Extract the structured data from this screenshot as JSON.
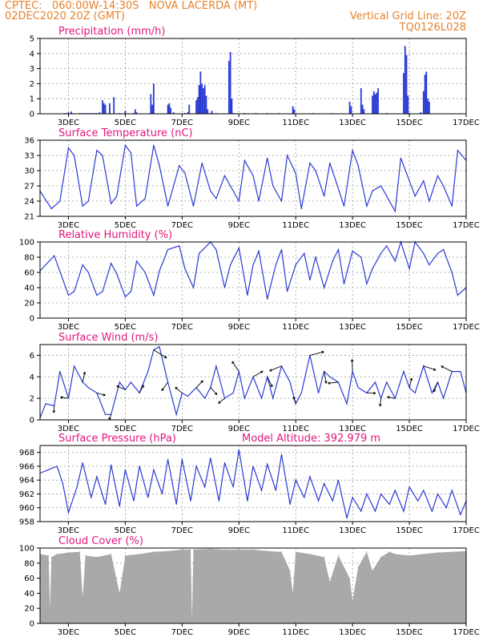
{
  "header": {
    "line1": "CPTEC:   060:00W-14:30S   NOVA LACERDA (MT)",
    "line2": "02DEC2020 20Z (GMT)",
    "grid_note": "Vertical Grid Line: 20Z",
    "code": "TQ0126L028",
    "model_altitude": "Model Altitude: 392.979 m"
  },
  "colors": {
    "header": "#e8822a",
    "title": "#e0177e",
    "line": "#2a3bd4",
    "bar": "#2a3bd4",
    "cloud": "#a9a9a9",
    "grid": "#9a9a9a"
  },
  "x_ticks": [
    "3DEC",
    "5DEC",
    "7DEC",
    "9DEC",
    "11DEC",
    "13DEC",
    "15DEC",
    "17DEC"
  ],
  "chart_data": [
    {
      "id": "precip",
      "type": "bar",
      "title": "Precipitation (mm/h)",
      "ylim": [
        0,
        5
      ],
      "yticks": [
        0,
        1,
        2,
        3,
        4,
        5
      ],
      "x": [
        2.9,
        3.0,
        3.1,
        3.4,
        3.5,
        3.6,
        3.7,
        3.8,
        3.9,
        4.0,
        4.1,
        4.2,
        4.25,
        4.3,
        4.45,
        4.6,
        4.8,
        5.0,
        5.3,
        5.35,
        5.4,
        5.9,
        5.95,
        6.0,
        6.5,
        6.55,
        6.6,
        6.7,
        7.1,
        7.2,
        7.25,
        7.5,
        7.55,
        7.6,
        7.65,
        7.7,
        7.75,
        7.8,
        7.85,
        7.9,
        8.0,
        8.05,
        8.2,
        8.65,
        8.7,
        8.75,
        8.8,
        9.2,
        9.6,
        10.0,
        10.4,
        10.9,
        10.95,
        11.6,
        12.3,
        12.9,
        12.95,
        13.3,
        13.35,
        13.4,
        13.7,
        13.75,
        13.8,
        13.85,
        13.9,
        14.2,
        14.8,
        14.85,
        14.9,
        14.95,
        15.0,
        15.4,
        15.5,
        15.55,
        15.6,
        15.65,
        15.7
      ],
      "values": [
        0.05,
        0.1,
        0.15,
        0.05,
        0.05,
        0.05,
        0.05,
        0.05,
        0.05,
        0.05,
        0.1,
        0.9,
        0.7,
        0.6,
        0.7,
        1.1,
        0.05,
        0.2,
        0.05,
        0.3,
        0.1,
        1.3,
        0.6,
        2.0,
        0.6,
        0.7,
        0.4,
        0.1,
        0.05,
        0.1,
        0.6,
        0.9,
        1.1,
        1.9,
        2.8,
        2.0,
        1.7,
        1.9,
        1.2,
        0.3,
        0.05,
        0.2,
        0.05,
        3.5,
        4.1,
        1.0,
        0.05,
        0.05,
        0.05,
        0.05,
        0.05,
        0.5,
        0.3,
        0.05,
        0.05,
        0.8,
        0.5,
        1.7,
        0.6,
        0.3,
        1.2,
        1.5,
        1.3,
        1.4,
        1.7,
        0.05,
        2.7,
        4.5,
        3.9,
        1.2,
        0.05,
        0.1,
        1.5,
        2.6,
        2.8,
        1.0,
        0.8
      ]
    },
    {
      "id": "temp",
      "type": "line",
      "title": "Surface Temperature (nC)",
      "ylim": [
        21,
        36
      ],
      "yticks": [
        21,
        24,
        27,
        30,
        33,
        36
      ],
      "x": [
        2.0,
        2.4,
        2.7,
        3.0,
        3.2,
        3.5,
        3.7,
        4.0,
        4.2,
        4.5,
        4.7,
        5.0,
        5.2,
        5.4,
        5.7,
        6.0,
        6.2,
        6.5,
        6.9,
        7.1,
        7.4,
        7.7,
        8.0,
        8.2,
        8.5,
        8.7,
        9.0,
        9.2,
        9.5,
        9.7,
        10.0,
        10.2,
        10.5,
        10.7,
        11.0,
        11.2,
        11.5,
        11.7,
        12.0,
        12.2,
        12.5,
        12.7,
        13.0,
        13.2,
        13.5,
        13.7,
        14.0,
        14.2,
        14.5,
        14.7,
        15.0,
        15.2,
        15.5,
        15.7,
        16.0,
        16.2,
        16.5,
        16.7,
        17.0
      ],
      "values": [
        26,
        22.5,
        24,
        34.5,
        33,
        23,
        24,
        34,
        33,
        23.5,
        25,
        35,
        33.5,
        23,
        24.5,
        35,
        31,
        23,
        31,
        29.5,
        23,
        31.5,
        26,
        24.5,
        29,
        27,
        24,
        32,
        29,
        24,
        32.5,
        27,
        24,
        33,
        29.5,
        22.5,
        31.5,
        30,
        25,
        31.5,
        26.5,
        23,
        34,
        31,
        23,
        26,
        27,
        25,
        22,
        32.5,
        28,
        25,
        28,
        24,
        29,
        27,
        23,
        34,
        32
      ]
    },
    {
      "id": "rh",
      "type": "line",
      "title": "Relative Humidity (%)",
      "ylim": [
        0,
        100
      ],
      "yticks": [
        0,
        20,
        40,
        60,
        80,
        100
      ],
      "x": [
        2.0,
        2.5,
        3.0,
        3.2,
        3.5,
        3.7,
        4.0,
        4.2,
        4.5,
        4.7,
        5.0,
        5.2,
        5.4,
        5.7,
        6.0,
        6.2,
        6.5,
        6.9,
        7.1,
        7.4,
        7.6,
        8.0,
        8.2,
        8.5,
        8.7,
        9.0,
        9.3,
        9.5,
        9.7,
        10.0,
        10.3,
        10.5,
        10.7,
        11.0,
        11.3,
        11.5,
        11.7,
        12.0,
        12.3,
        12.5,
        12.7,
        13.0,
        13.3,
        13.5,
        13.7,
        14.0,
        14.2,
        14.5,
        14.7,
        15.0,
        15.2,
        15.5,
        15.7,
        16.0,
        16.2,
        16.5,
        16.7,
        17.0
      ],
      "values": [
        62,
        82,
        30,
        35,
        70,
        60,
        30,
        35,
        72,
        58,
        28,
        35,
        75,
        60,
        30,
        62,
        90,
        95,
        65,
        40,
        85,
        100,
        90,
        40,
        70,
        92,
        30,
        70,
        88,
        25,
        70,
        90,
        35,
        70,
        85,
        50,
        80,
        40,
        75,
        90,
        45,
        88,
        80,
        45,
        65,
        85,
        95,
        75,
        100,
        65,
        100,
        85,
        70,
        85,
        90,
        60,
        30,
        40
      ]
    },
    {
      "id": "wind",
      "type": "line",
      "title": "Surface Wind (m/s)",
      "ylim": [
        0,
        7
      ],
      "yticks": [
        0,
        2,
        4,
        6
      ],
      "x": [
        2.0,
        2.2,
        2.5,
        2.7,
        3.0,
        3.2,
        3.5,
        3.7,
        4.0,
        4.3,
        4.5,
        4.8,
        5.0,
        5.2,
        5.5,
        5.8,
        6.0,
        6.2,
        6.5,
        6.8,
        7.0,
        7.2,
        7.5,
        7.8,
        8.0,
        8.2,
        8.5,
        8.8,
        9.0,
        9.2,
        9.5,
        9.8,
        10.0,
        10.2,
        10.5,
        10.8,
        11.0,
        11.2,
        11.5,
        11.8,
        12.0,
        12.2,
        12.5,
        12.8,
        13.0,
        13.2,
        13.5,
        13.8,
        14.0,
        14.2,
        14.5,
        14.8,
        15.0,
        15.2,
        15.5,
        15.8,
        16.0,
        16.2,
        16.5,
        16.8,
        17.0
      ],
      "values": [
        0.2,
        1.5,
        1.3,
        4.5,
        2.0,
        5.0,
        3.5,
        3.0,
        2.5,
        0.5,
        0.5,
        3.5,
        2.8,
        3.5,
        2.5,
        4.5,
        6.5,
        6.8,
        3.5,
        0.5,
        2.5,
        2.2,
        3.0,
        2.0,
        3.0,
        5.0,
        2.0,
        2.5,
        4.5,
        2.0,
        4.0,
        2.0,
        4.0,
        2.0,
        5.0,
        3.5,
        1.5,
        2.5,
        6.0,
        2.5,
        4.5,
        4.0,
        3.5,
        1.5,
        4.5,
        3.0,
        2.5,
        3.5,
        2.0,
        3.5,
        2.0,
        4.5,
        3.0,
        2.5,
        5.0,
        2.5,
        3.5,
        2.0,
        4.5,
        4.5,
        2.5
      ]
    },
    {
      "id": "pressure",
      "type": "line",
      "title": "Surface Pressure (hPa)",
      "ylim": [
        958,
        969
      ],
      "yticks": [
        958,
        960,
        962,
        964,
        966,
        968
      ],
      "x": [
        2.0,
        2.3,
        2.6,
        2.8,
        3.0,
        3.3,
        3.5,
        3.8,
        4.0,
        4.3,
        4.5,
        4.8,
        5.0,
        5.3,
        5.5,
        5.8,
        6.0,
        6.3,
        6.5,
        6.8,
        7.0,
        7.3,
        7.5,
        7.8,
        8.0,
        8.3,
        8.5,
        8.8,
        9.0,
        9.3,
        9.5,
        9.8,
        10.0,
        10.3,
        10.5,
        10.8,
        11.0,
        11.3,
        11.5,
        11.8,
        12.0,
        12.3,
        12.5,
        12.8,
        13.0,
        13.3,
        13.5,
        13.8,
        14.0,
        14.3,
        14.5,
        14.8,
        15.0,
        15.3,
        15.5,
        15.8,
        16.0,
        16.3,
        16.5,
        16.8,
        17.0
      ],
      "values": [
        965,
        965.5,
        966,
        963.5,
        959.3,
        963,
        966.5,
        961.5,
        964.5,
        960.5,
        966.2,
        960.2,
        965.5,
        961,
        966,
        961.5,
        965.5,
        962,
        967,
        960.5,
        967,
        961,
        966,
        963,
        967.2,
        961,
        966.5,
        963,
        968.4,
        961,
        966,
        962.5,
        966.3,
        962.5,
        967.7,
        960.5,
        964,
        961.5,
        964.5,
        961,
        963.5,
        961,
        964,
        958.5,
        961.5,
        959.5,
        962,
        959.5,
        962,
        960.5,
        962.5,
        959.5,
        963,
        961,
        962.5,
        959.5,
        962,
        960,
        962.5,
        959,
        961
      ]
    },
    {
      "id": "cloud",
      "type": "area",
      "title": "Cloud Cover (%)",
      "ylim": [
        0,
        100
      ],
      "yticks": [
        0,
        20,
        40,
        60,
        80,
        100
      ],
      "x": [
        2.0,
        2.3,
        2.35,
        2.4,
        2.6,
        3.0,
        3.4,
        3.5,
        3.6,
        4.0,
        4.5,
        4.8,
        5.0,
        5.5,
        6.0,
        6.5,
        7.0,
        7.3,
        7.35,
        7.4,
        8.0,
        8.5,
        9.0,
        9.5,
        10.0,
        10.5,
        10.8,
        10.9,
        11.0,
        11.5,
        12.0,
        12.2,
        12.5,
        12.9,
        13.0,
        13.2,
        13.5,
        13.7,
        14.0,
        14.3,
        14.5,
        15.0,
        15.5,
        16.0,
        16.5,
        17.0
      ],
      "values": [
        92,
        90,
        20,
        88,
        92,
        94,
        95,
        35,
        90,
        88,
        92,
        40,
        90,
        92,
        95,
        96,
        98,
        98,
        5,
        98,
        99,
        98,
        98,
        98,
        96,
        95,
        70,
        40,
        95,
        92,
        88,
        55,
        90,
        60,
        30,
        75,
        95,
        70,
        88,
        95,
        92,
        90,
        92,
        94,
        95,
        96
      ]
    }
  ]
}
